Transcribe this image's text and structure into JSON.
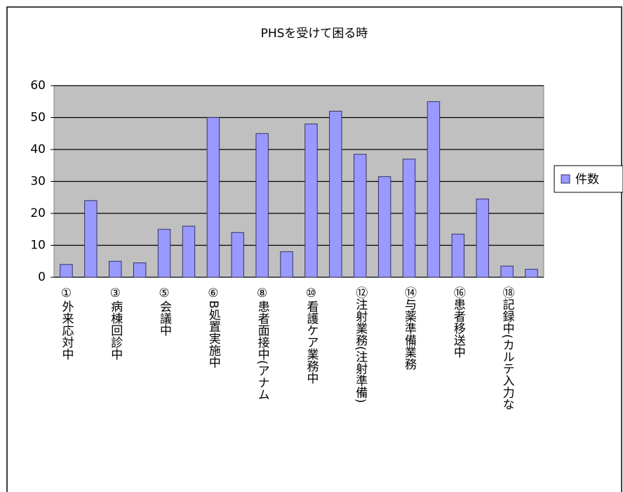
{
  "chart_data": {
    "type": "bar",
    "title": "PHSを受けて困る時",
    "categories": [
      "①外来応対中",
      null,
      "③病棟回診中",
      null,
      "⑤会議中",
      null,
      "⑥B処置実施中",
      null,
      "⑧患者面接中(アナム",
      null,
      "⑩看護ケア業務中",
      null,
      "⑫注射業務(注射準備)",
      null,
      "⑭与薬準備業務",
      null,
      "⑯患者移送中",
      null,
      "⑱記録中(カルテ入力な",
      null
    ],
    "series": [
      {
        "name": "件数",
        "color": "#9999ff",
        "values": [
          4,
          24,
          5,
          4.5,
          15,
          16,
          50,
          14,
          45,
          8,
          48,
          52,
          38.5,
          31.5,
          37,
          55,
          13.5,
          24.5,
          3.5,
          2.5
        ]
      }
    ],
    "ylim": [
      0,
      60
    ],
    "yticks": [
      0,
      10,
      20,
      30,
      40,
      50,
      60
    ],
    "grid": true,
    "legend": "right"
  }
}
